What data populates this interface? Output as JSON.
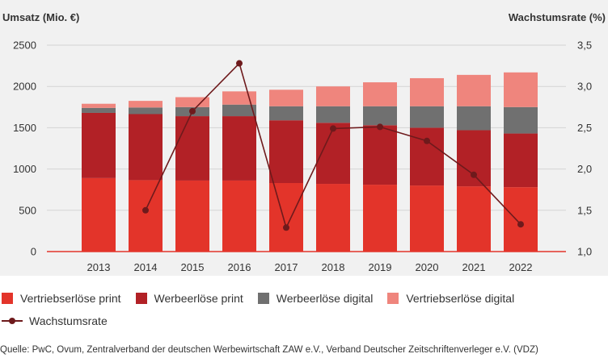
{
  "chart_data": {
    "type": "bar",
    "stacked": true,
    "categories": [
      "2013",
      "2014",
      "2015",
      "2016",
      "2017",
      "2018",
      "2019",
      "2020",
      "2021",
      "2022"
    ],
    "series": [
      {
        "name": "Vertriebserlöse print",
        "color": "#e3342a",
        "values": [
          890,
          865,
          860,
          860,
          830,
          820,
          810,
          800,
          790,
          780
        ]
      },
      {
        "name": "Werbeerlöse print",
        "color": "#b22126",
        "values": [
          790,
          800,
          780,
          780,
          760,
          740,
          720,
          700,
          680,
          650
        ]
      },
      {
        "name": "Werbeerlöse digital",
        "color": "#707070",
        "values": [
          60,
          80,
          110,
          140,
          170,
          200,
          230,
          260,
          290,
          320
        ]
      },
      {
        "name": "Vertriebserlöse digital",
        "color": "#ef857d",
        "values": [
          50,
          80,
          120,
          160,
          200,
          240,
          290,
          340,
          380,
          420
        ]
      }
    ],
    "line_series": {
      "name": "Wachstumsrate",
      "color": "#6e1a1c",
      "values": [
        null,
        1.5,
        2.7,
        3.28,
        1.29,
        2.49,
        2.51,
        2.34,
        1.93,
        1.33
      ]
    },
    "ylabel": "Umsatz (Mio. €)",
    "y2label": "Wachstumsrate (%)",
    "ylim": [
      0,
      2500
    ],
    "y2lim": [
      1.0,
      3.5
    ],
    "yticks": [
      "0",
      "500",
      "1000",
      "1500",
      "2000",
      "2500"
    ],
    "y2ticks": [
      "1,0",
      "1,5",
      "2,0",
      "2,5",
      "3,0",
      "3,5"
    ],
    "grid": true,
    "legend_position": "bottom"
  },
  "source": "Quelle: PwC, Ovum, Zentralverband der deutschen Werbewirtschaft ZAW e.V., Verband Deutscher Zeitschriftenverleger e.V. (VDZ)"
}
